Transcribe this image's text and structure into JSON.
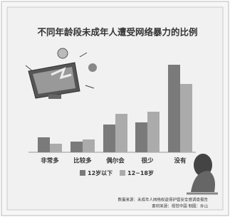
{
  "chart_data": {
    "type": "bar",
    "title": "不同年龄段未成年人遭受网络暴力的比例",
    "categories": [
      "非常多",
      "比较多",
      "偶尔会",
      "很少",
      "没有"
    ],
    "series": [
      {
        "name": "12岁以下",
        "color": "#7a7a7a",
        "values": [
          7,
          5,
          13,
          14,
          41
        ]
      },
      {
        "name": "12~18岁",
        "color": "#ababab",
        "values": [
          4,
          6,
          18,
          19,
          32
        ]
      }
    ],
    "source": "数据来源：未成年人网络权益保护暨安全感调查报告",
    "credit": "素材来源：视觉中国  制图：孙山"
  }
}
